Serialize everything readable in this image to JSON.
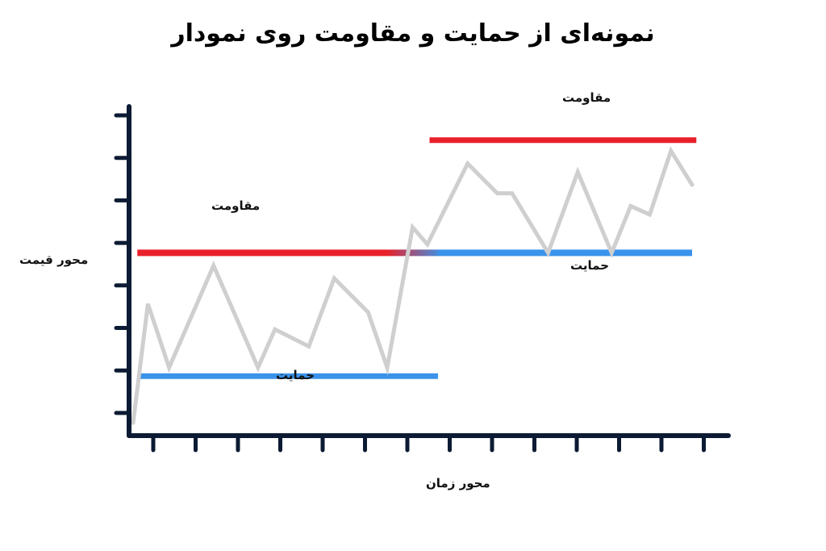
{
  "title": "نمونه‌ای از حمایت و مقاومت روی نمودار",
  "axes": {
    "y_label": "محور قیمت",
    "x_label": "محور زمان"
  },
  "chart_data": {
    "type": "line",
    "title": "نمونه‌ای از حمایت و مقاومت روی نمودار",
    "xlabel": "محور زمان",
    "ylabel": "محور قیمت",
    "x_ticks": 14,
    "y_ticks": 8,
    "xlim": [
      0,
      14.5
    ],
    "ylim": [
      0,
      8
    ],
    "grid": false,
    "series": [
      {
        "values": [
          {
            "x": 0.0,
            "y": 0.3
          },
          {
            "x": 0.35,
            "y": 3.1
          },
          {
            "x": 0.85,
            "y": 1.6
          },
          {
            "x": 1.9,
            "y": 4.0
          },
          {
            "x": 2.95,
            "y": 1.6
          },
          {
            "x": 3.35,
            "y": 2.5
          },
          {
            "x": 4.15,
            "y": 2.1
          },
          {
            "x": 4.75,
            "y": 3.7
          },
          {
            "x": 5.55,
            "y": 2.9
          },
          {
            "x": 6.0,
            "y": 1.6
          },
          {
            "x": 6.6,
            "y": 4.9
          },
          {
            "x": 6.95,
            "y": 4.5
          },
          {
            "x": 7.9,
            "y": 6.4
          },
          {
            "x": 8.6,
            "y": 5.7
          },
          {
            "x": 8.95,
            "y": 5.7
          },
          {
            "x": 9.8,
            "y": 4.3
          },
          {
            "x": 10.5,
            "y": 6.2
          },
          {
            "x": 11.3,
            "y": 4.3
          },
          {
            "x": 11.75,
            "y": 5.4
          },
          {
            "x": 12.2,
            "y": 5.2
          },
          {
            "x": 12.7,
            "y": 6.7
          },
          {
            "x": 13.2,
            "y": 5.9
          }
        ]
      }
    ],
    "levels": [
      {
        "kind": "resistance",
        "label": "مقاومت",
        "y": 4.3,
        "x_start": 0.1,
        "x_end": 13.2,
        "color": "#e8202a"
      },
      {
        "kind": "support",
        "label": "حمایت",
        "y": 1.4,
        "x_start": 0.1,
        "x_end": 7.2,
        "color": "#3a93ea"
      },
      {
        "kind": "resistance",
        "label": "مقاومت",
        "y": 6.95,
        "x_start": 7.0,
        "x_end": 13.3,
        "color": "#e8202a"
      },
      {
        "kind": "support",
        "label": "حمایت",
        "y": 4.3,
        "x_start": 7.2,
        "x_end": 13.2,
        "color": "#3a93ea"
      }
    ]
  },
  "colors": {
    "axis": "#0c1b33",
    "price_line": "#cfcfcf",
    "resistance": "#e8202a",
    "support": "#3a93ea"
  }
}
